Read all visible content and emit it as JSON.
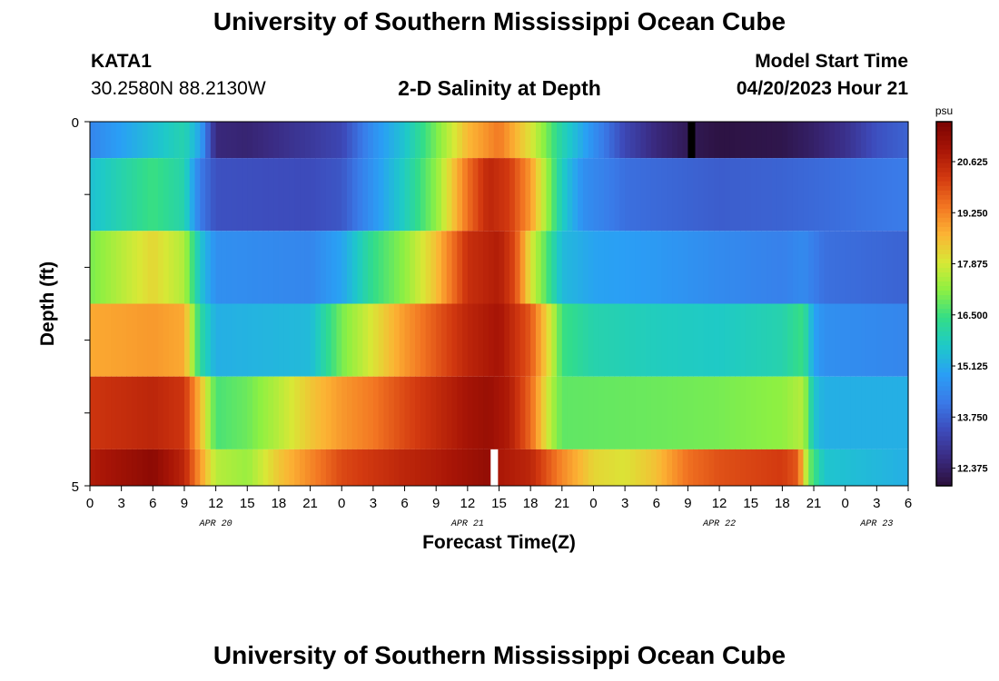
{
  "header": {
    "title": "University of Southern Mississippi Ocean Cube",
    "station": "KATA1",
    "coordinates": "30.2580N  88.2130W",
    "subtitle": "2-D Salinity at Depth",
    "model_start_label": "Model Start Time",
    "model_start_value": "04/20/2023 Hour 21"
  },
  "footer": {
    "title": "University of Southern Mississippi Ocean Cube"
  },
  "colors": {
    "palette": [
      "#2b0f3a",
      "#3a2a80",
      "#3d4bbb",
      "#3a7ae8",
      "#2a9ff5",
      "#1ec9c9",
      "#33dd88",
      "#8df042",
      "#d8e836",
      "#fcb334",
      "#f27522",
      "#d33a10",
      "#a81506",
      "#7a0403"
    ],
    "missing_light": "#ffffff",
    "missing_dark": "#000000"
  },
  "chart_data": {
    "type": "heatmap",
    "title": "2-D Salinity at Depth",
    "xlabel": "Forecast Time(Z)",
    "ylabel": "Depth (ft)",
    "x_hours_from_apr20_00": [
      0,
      78
    ],
    "xtick_labels": [
      "0",
      "3",
      "6",
      "9",
      "12",
      "15",
      "18",
      "21",
      "0",
      "3",
      "6",
      "9",
      "12",
      "15",
      "18",
      "21",
      "0",
      "3",
      "6",
      "9",
      "12",
      "15",
      "18",
      "21",
      "0",
      "3",
      "6"
    ],
    "date_labels": [
      {
        "text": "APR 20",
        "hour": 12
      },
      {
        "text": "APR 21",
        "hour": 36
      },
      {
        "text": "APR 22",
        "hour": 60
      },
      {
        "text": "APR 23",
        "hour": 75
      }
    ],
    "ylim": [
      0,
      5
    ],
    "ytick_labels": [
      "0",
      "5"
    ],
    "colorbar": {
      "unit": "psu",
      "min": 11.9,
      "max": 21.7,
      "tick_labels": [
        "20.625",
        "19.250",
        "17.875",
        "16.500",
        "15.125",
        "13.750",
        "12.375"
      ],
      "tick_values": [
        20.625,
        19.25,
        17.875,
        16.5,
        15.125,
        13.75,
        12.375
      ]
    },
    "layers": [
      {
        "depth_band": "0-0.5",
        "points": [
          [
            0,
            14.4
          ],
          [
            5,
            15.3
          ],
          [
            9,
            16.0
          ],
          [
            10.5,
            15.0
          ],
          [
            12,
            12.6
          ],
          [
            15,
            12.5
          ],
          [
            21,
            13.0
          ],
          [
            24,
            13.3
          ],
          [
            27,
            14.6
          ],
          [
            30,
            15.6
          ],
          [
            33,
            17.0
          ],
          [
            36,
            18.6
          ],
          [
            39,
            19.4
          ],
          [
            42,
            18.0
          ],
          [
            45,
            16.0
          ],
          [
            48,
            14.6
          ],
          [
            51,
            13.3
          ],
          [
            54,
            12.6
          ],
          [
            57,
            12.2
          ],
          [
            60,
            12.0
          ],
          [
            66,
            12.1
          ],
          [
            69,
            12.4
          ],
          [
            72,
            12.8
          ],
          [
            75,
            13.5
          ],
          [
            78,
            13.8
          ]
        ],
        "missing": [
          {
            "from": 57,
            "to": 57.7,
            "kind": "dark"
          }
        ]
      },
      {
        "depth_band": "0.5-1.5",
        "points": [
          [
            0,
            15.5
          ],
          [
            3,
            16.0
          ],
          [
            6,
            16.5
          ],
          [
            9,
            16.0
          ],
          [
            10.5,
            14.2
          ],
          [
            12,
            13.5
          ],
          [
            21,
            13.4
          ],
          [
            24,
            13.6
          ],
          [
            27,
            14.7
          ],
          [
            30,
            15.8
          ],
          [
            33,
            17.2
          ],
          [
            36,
            19.5
          ],
          [
            38,
            20.6
          ],
          [
            40,
            20.2
          ],
          [
            42,
            19.0
          ],
          [
            45,
            15.8
          ],
          [
            47,
            14.6
          ],
          [
            51,
            14.0
          ],
          [
            60,
            13.7
          ],
          [
            66,
            13.8
          ],
          [
            72,
            14.0
          ],
          [
            78,
            14.2
          ]
        ],
        "missing": []
      },
      {
        "depth_band": "1.5-2.5",
        "points": [
          [
            0,
            17.0
          ],
          [
            6,
            18.2
          ],
          [
            9,
            17.5
          ],
          [
            10.5,
            15.6
          ],
          [
            12,
            14.6
          ],
          [
            21,
            14.4
          ],
          [
            24,
            15.0
          ],
          [
            27,
            16.4
          ],
          [
            30,
            17.2
          ],
          [
            33,
            18.5
          ],
          [
            36,
            20.4
          ],
          [
            39,
            20.8
          ],
          [
            40.5,
            20.0
          ],
          [
            42,
            18.0
          ],
          [
            45,
            15.4
          ],
          [
            48,
            15.0
          ],
          [
            54,
            14.8
          ],
          [
            60,
            14.5
          ],
          [
            66,
            14.3
          ],
          [
            68,
            14.5
          ],
          [
            70,
            14.0
          ],
          [
            78,
            13.8
          ]
        ],
        "missing": []
      },
      {
        "depth_band": "2.5-3.5",
        "points": [
          [
            0,
            18.8
          ],
          [
            6,
            19.0
          ],
          [
            9,
            18.8
          ],
          [
            10.5,
            16.2
          ],
          [
            12,
            15.2
          ],
          [
            21,
            15.4
          ],
          [
            24,
            17.0
          ],
          [
            27,
            18.0
          ],
          [
            30,
            19.0
          ],
          [
            33,
            19.8
          ],
          [
            36,
            20.6
          ],
          [
            39,
            21.0
          ],
          [
            42,
            19.8
          ],
          [
            44,
            17.8
          ],
          [
            45,
            16.5
          ],
          [
            48,
            16.0
          ],
          [
            54,
            15.8
          ],
          [
            60,
            15.7
          ],
          [
            66,
            16.0
          ],
          [
            68,
            16.5
          ],
          [
            69,
            15.0
          ],
          [
            70,
            14.6
          ],
          [
            78,
            14.4
          ]
        ],
        "missing": []
      },
      {
        "depth_band": "3.5-4.5",
        "points": [
          [
            0,
            20.3
          ],
          [
            6,
            20.6
          ],
          [
            9,
            20.3
          ],
          [
            10.5,
            18.6
          ],
          [
            12,
            16.6
          ],
          [
            15,
            16.9
          ],
          [
            18,
            17.6
          ],
          [
            21,
            18.4
          ],
          [
            24,
            19.0
          ],
          [
            27,
            19.4
          ],
          [
            30,
            20.0
          ],
          [
            33,
            20.5
          ],
          [
            36,
            21.0
          ],
          [
            38,
            21.2
          ],
          [
            40,
            20.8
          ],
          [
            42,
            19.6
          ],
          [
            44,
            17.5
          ],
          [
            45,
            16.8
          ],
          [
            54,
            16.9
          ],
          [
            60,
            17.0
          ],
          [
            66,
            17.2
          ],
          [
            68,
            17.6
          ],
          [
            69,
            15.6
          ],
          [
            70,
            15.2
          ],
          [
            78,
            15.2
          ]
        ],
        "missing": []
      },
      {
        "depth_band": "4.5-5",
        "points": [
          [
            0,
            20.8
          ],
          [
            6,
            21.4
          ],
          [
            9,
            20.6
          ],
          [
            10.5,
            19.0
          ],
          [
            12,
            17.6
          ],
          [
            15,
            17.3
          ],
          [
            18,
            18.4
          ],
          [
            21,
            19.2
          ],
          [
            24,
            20.0
          ],
          [
            27,
            20.3
          ],
          [
            30,
            20.6
          ],
          [
            33,
            20.8
          ],
          [
            36,
            21.1
          ],
          [
            38,
            21.3
          ],
          [
            39,
            20.9
          ],
          [
            42,
            20.6
          ],
          [
            45,
            19.2
          ],
          [
            48,
            18.2
          ],
          [
            51,
            18.0
          ],
          [
            54,
            18.5
          ],
          [
            57,
            19.5
          ],
          [
            60,
            19.9
          ],
          [
            66,
            20.2
          ],
          [
            67.5,
            19.8
          ],
          [
            68.5,
            17.0
          ],
          [
            70,
            15.6
          ],
          [
            78,
            15.2
          ]
        ],
        "missing": [
          {
            "from": 38.2,
            "to": 38.9,
            "kind": "light"
          }
        ]
      }
    ],
    "depth_bands": [
      [
        0,
        0.5
      ],
      [
        0.5,
        1.5
      ],
      [
        1.5,
        2.5
      ],
      [
        2.5,
        3.5
      ],
      [
        3.5,
        4.5
      ],
      [
        4.5,
        5
      ]
    ]
  }
}
